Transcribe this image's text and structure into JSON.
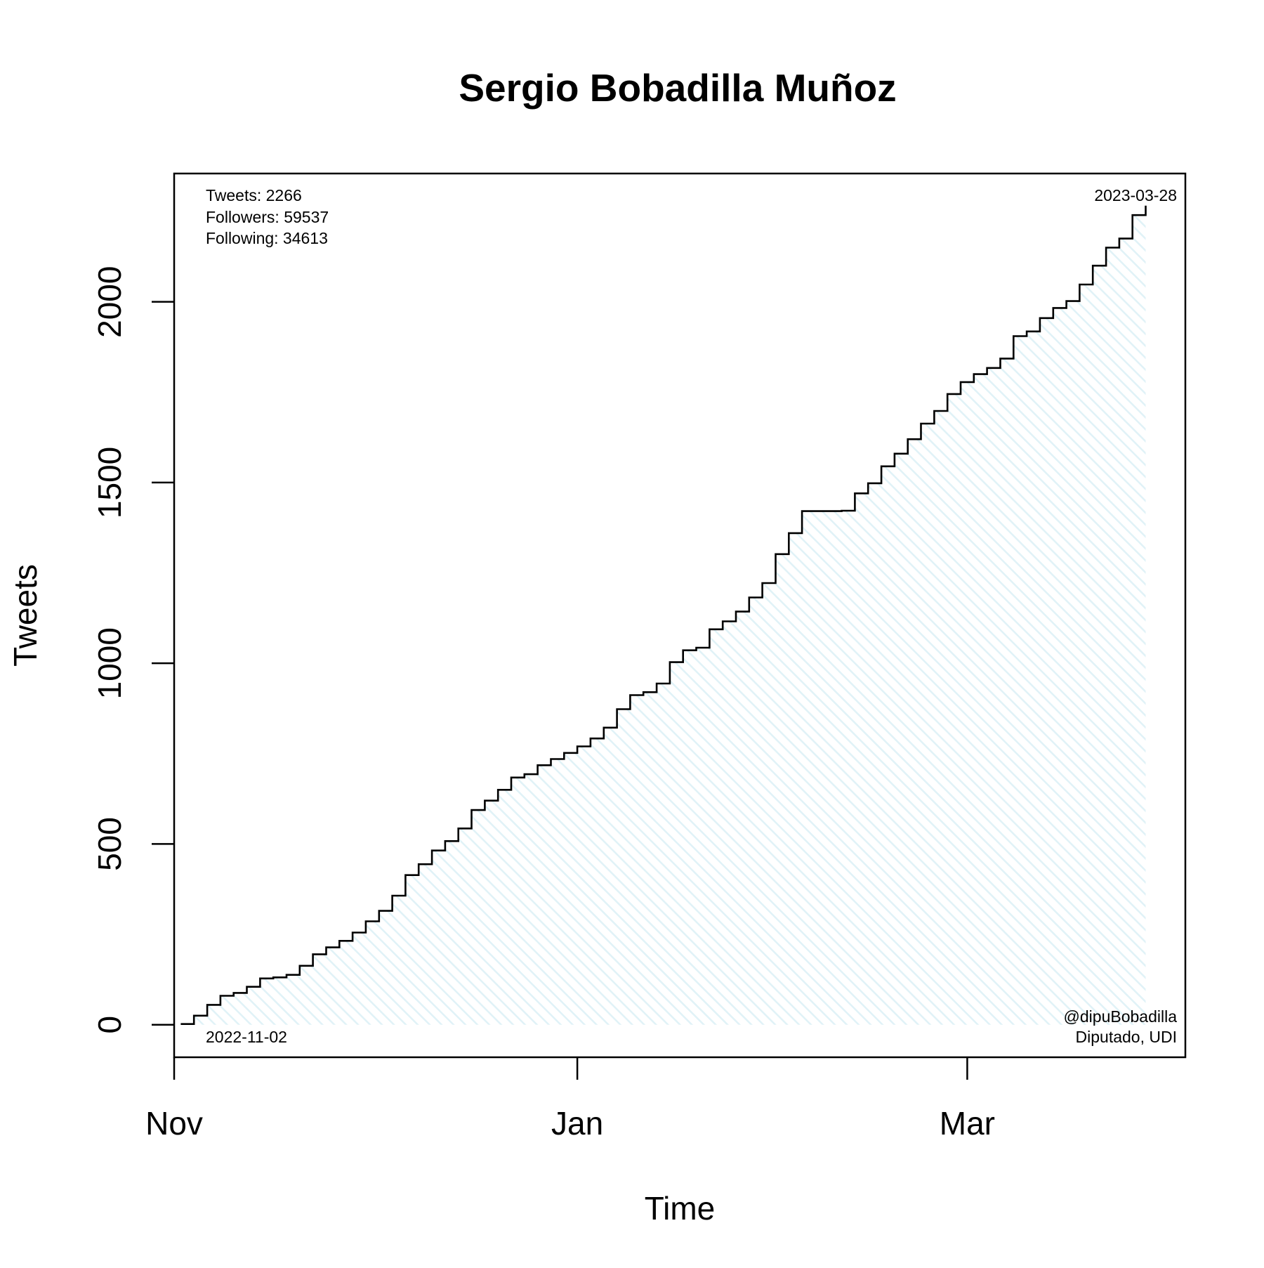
{
  "chart_data": {
    "type": "line",
    "step": true,
    "title": "Sergio Bobadilla Muñoz",
    "xlabel": "Time",
    "ylabel": "Tweets",
    "x_date_range": [
      "2022-11-02",
      "2023-03-28"
    ],
    "xlim": [
      "2022-11-01",
      "2023-04-03"
    ],
    "ylim": [
      -90,
      2355
    ],
    "x_ticks": [
      {
        "date": "2022-11-01",
        "label": "Nov"
      },
      {
        "date": "2023-01-01",
        "label": "Jan"
      },
      {
        "date": "2023-03-01",
        "label": "Mar"
      }
    ],
    "y_ticks": [
      0,
      500,
      1000,
      1500,
      2000
    ],
    "grid": false,
    "fill_color": "#e0f2f7",
    "line_color": "#000000",
    "series": [
      {
        "points": [
          [
            "2022-11-02",
            2
          ],
          [
            "2022-11-04",
            25
          ],
          [
            "2022-11-06",
            55
          ],
          [
            "2022-11-08",
            80
          ],
          [
            "2022-11-10",
            88
          ],
          [
            "2022-11-12",
            105
          ],
          [
            "2022-11-14",
            128
          ],
          [
            "2022-11-16",
            131
          ],
          [
            "2022-11-18",
            138
          ],
          [
            "2022-11-20",
            163
          ],
          [
            "2022-11-22",
            195
          ],
          [
            "2022-11-24",
            214
          ],
          [
            "2022-11-26",
            232
          ],
          [
            "2022-11-28",
            255
          ],
          [
            "2022-11-30",
            286
          ],
          [
            "2022-12-02",
            315
          ],
          [
            "2022-12-04",
            357
          ],
          [
            "2022-12-06",
            414
          ],
          [
            "2022-12-08",
            444
          ],
          [
            "2022-12-10",
            482
          ],
          [
            "2022-12-12",
            508
          ],
          [
            "2022-12-14",
            543
          ],
          [
            "2022-12-16",
            594
          ],
          [
            "2022-12-18",
            620
          ],
          [
            "2022-12-20",
            650
          ],
          [
            "2022-12-22",
            684
          ],
          [
            "2022-12-24",
            693
          ],
          [
            "2022-12-26",
            718
          ],
          [
            "2022-12-28",
            735
          ],
          [
            "2022-12-30",
            752
          ],
          [
            "2023-01-01",
            770
          ],
          [
            "2023-01-03",
            792
          ],
          [
            "2023-01-05",
            822
          ],
          [
            "2023-01-07",
            873
          ],
          [
            "2023-01-09",
            912
          ],
          [
            "2023-01-11",
            920
          ],
          [
            "2023-01-13",
            944
          ],
          [
            "2023-01-15",
            1003
          ],
          [
            "2023-01-17",
            1036
          ],
          [
            "2023-01-19",
            1043
          ],
          [
            "2023-01-21",
            1094
          ],
          [
            "2023-01-23",
            1116
          ],
          [
            "2023-01-25",
            1143
          ],
          [
            "2023-01-27",
            1182
          ],
          [
            "2023-01-29",
            1222
          ],
          [
            "2023-01-31",
            1302
          ],
          [
            "2023-02-02",
            1360
          ],
          [
            "2023-02-04",
            1421
          ],
          [
            "2023-02-10",
            1422
          ],
          [
            "2023-02-12",
            1470
          ],
          [
            "2023-02-14",
            1498
          ],
          [
            "2023-02-16",
            1545
          ],
          [
            "2023-02-18",
            1580
          ],
          [
            "2023-02-20",
            1620
          ],
          [
            "2023-02-22",
            1663
          ],
          [
            "2023-02-24",
            1698
          ],
          [
            "2023-02-26",
            1745
          ],
          [
            "2023-02-28",
            1778
          ],
          [
            "2023-03-02",
            1800
          ],
          [
            "2023-03-04",
            1817
          ],
          [
            "2023-03-06",
            1843
          ],
          [
            "2023-03-08",
            1905
          ],
          [
            "2023-03-10",
            1918
          ],
          [
            "2023-03-12",
            1955
          ],
          [
            "2023-03-14",
            1983
          ],
          [
            "2023-03-16",
            2002
          ],
          [
            "2023-03-18",
            2048
          ],
          [
            "2023-03-20",
            2100
          ],
          [
            "2023-03-22",
            2150
          ],
          [
            "2023-03-24",
            2175
          ],
          [
            "2023-03-26",
            2240
          ],
          [
            "2023-03-28",
            2266
          ]
        ]
      }
    ],
    "annotations": {
      "tweets": "Tweets: 2266",
      "followers": "Followers: 59537",
      "following": "Following: 34613",
      "end_date": "2023-03-28",
      "start_date": "2022-11-02",
      "handle": "@dipuBobadilla",
      "role": "Diputado, UDI"
    }
  }
}
